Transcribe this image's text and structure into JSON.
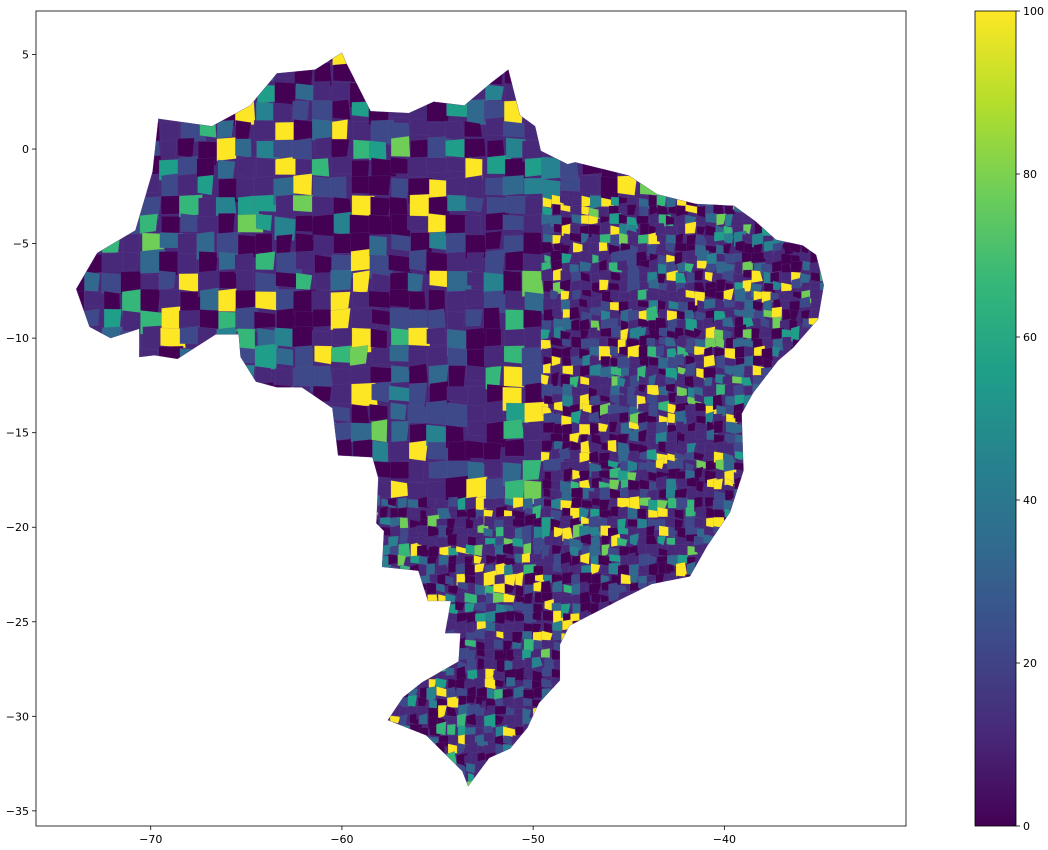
{
  "chart_data": {
    "type": "choropleth",
    "title": "",
    "xlabel": "",
    "ylabel": "",
    "xlim": [
      -76,
      -30.5
    ],
    "ylim": [
      -35.8,
      7.3
    ],
    "x_ticks": [
      -70,
      -60,
      -50,
      -40
    ],
    "y_ticks": [
      5,
      0,
      -5,
      -10,
      -15,
      -20,
      -25,
      -30,
      -35
    ],
    "x_tick_labels": [
      "−70",
      "−60",
      "−50",
      "−40"
    ],
    "y_tick_labels": [
      "5",
      "0",
      "−5",
      "−10",
      "−15",
      "−20",
      "−25",
      "−30",
      "−35"
    ],
    "grid": false,
    "colormap": "viridis",
    "colorbar": {
      "min": 0,
      "max": 100,
      "ticks": [
        0,
        20,
        40,
        60,
        80,
        100
      ],
      "tick_labels": [
        "0",
        "20",
        "40",
        "60",
        "80",
        "100"
      ],
      "colors": [
        "#440154",
        "#482878",
        "#3e4989",
        "#31688e",
        "#26828e",
        "#1f9e89",
        "#35b779",
        "#6ece58",
        "#b5de2b",
        "#fde725"
      ]
    },
    "region_outline": [
      [
        -73.9,
        -7.4
      ],
      [
        -72.8,
        -5.5
      ],
      [
        -70.8,
        -4.3
      ],
      [
        -69.9,
        -1.2
      ],
      [
        -69.6,
        1.6
      ],
      [
        -66.8,
        1.2
      ],
      [
        -64.8,
        2.3
      ],
      [
        -63.4,
        4.0
      ],
      [
        -61.4,
        4.2
      ],
      [
        -60.0,
        5.1
      ],
      [
        -59.8,
        4.6
      ],
      [
        -58.5,
        2.0
      ],
      [
        -56.5,
        1.9
      ],
      [
        -55.2,
        2.5
      ],
      [
        -53.6,
        2.3
      ],
      [
        -52.2,
        3.5
      ],
      [
        -51.3,
        4.2
      ],
      [
        -50.7,
        1.8
      ],
      [
        -49.9,
        1.2
      ],
      [
        -49.6,
        -0.1
      ],
      [
        -48.2,
        -0.8
      ],
      [
        -47.8,
        -0.7
      ],
      [
        -45.0,
        -1.4
      ],
      [
        -43.5,
        -2.4
      ],
      [
        -41.5,
        -2.9
      ],
      [
        -39.5,
        -3.0
      ],
      [
        -38.4,
        -3.8
      ],
      [
        -37.3,
        -4.8
      ],
      [
        -35.9,
        -5.1
      ],
      [
        -35.2,
        -5.6
      ],
      [
        -34.8,
        -7.2
      ],
      [
        -35.1,
        -9.0
      ],
      [
        -36.4,
        -10.5
      ],
      [
        -37.2,
        -11.2
      ],
      [
        -38.5,
        -12.9
      ],
      [
        -39.1,
        -14.0
      ],
      [
        -39.0,
        -17.0
      ],
      [
        -39.7,
        -19.2
      ],
      [
        -40.9,
        -21.0
      ],
      [
        -41.8,
        -22.6
      ],
      [
        -43.8,
        -23.0
      ],
      [
        -45.4,
        -23.8
      ],
      [
        -48.1,
        -25.2
      ],
      [
        -48.6,
        -26.2
      ],
      [
        -48.6,
        -28.1
      ],
      [
        -49.7,
        -29.3
      ],
      [
        -50.3,
        -30.6
      ],
      [
        -51.2,
        -31.7
      ],
      [
        -52.3,
        -32.2
      ],
      [
        -53.4,
        -33.7
      ],
      [
        -53.7,
        -32.9
      ],
      [
        -55.6,
        -31.0
      ],
      [
        -57.6,
        -30.2
      ],
      [
        -56.8,
        -29.0
      ],
      [
        -55.8,
        -28.2
      ],
      [
        -53.9,
        -27.1
      ],
      [
        -53.8,
        -25.6
      ],
      [
        -54.6,
        -25.6
      ],
      [
        -54.3,
        -23.9
      ],
      [
        -55.5,
        -23.9
      ],
      [
        -56.0,
        -22.3
      ],
      [
        -57.9,
        -22.1
      ],
      [
        -57.8,
        -20.2
      ],
      [
        -58.2,
        -19.8
      ],
      [
        -58.1,
        -17.4
      ],
      [
        -58.4,
        -16.3
      ],
      [
        -60.2,
        -16.2
      ],
      [
        -60.5,
        -13.7
      ],
      [
        -62.1,
        -12.6
      ],
      [
        -63.4,
        -12.6
      ],
      [
        -64.5,
        -12.3
      ],
      [
        -65.3,
        -11.0
      ],
      [
        -65.4,
        -9.8
      ],
      [
        -66.6,
        -9.8
      ],
      [
        -68.6,
        -11.1
      ],
      [
        -69.8,
        -10.9
      ],
      [
        -70.6,
        -11.0
      ],
      [
        -70.6,
        -9.5
      ],
      [
        -72.1,
        -10.0
      ],
      [
        -73.2,
        -9.4
      ],
      [
        -73.9,
        -7.4
      ]
    ]
  }
}
